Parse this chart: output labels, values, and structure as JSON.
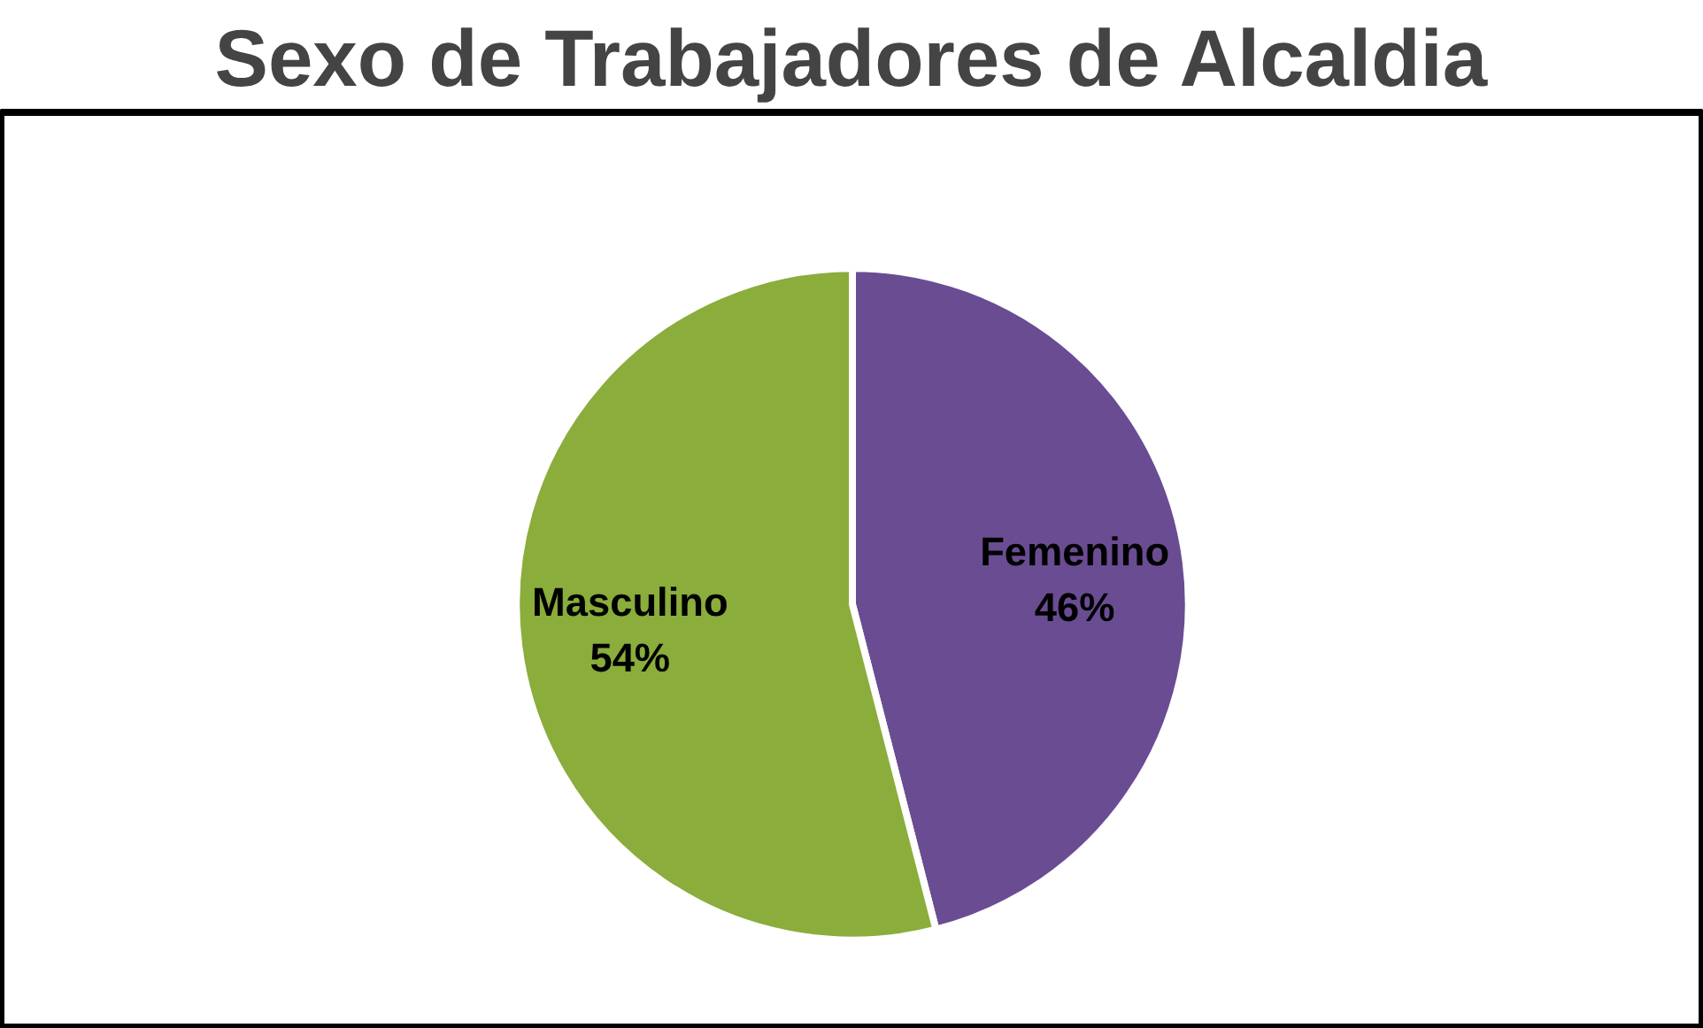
{
  "chart_data": {
    "type": "pie",
    "title": "Sexo de Trabajadores de Alcaldia",
    "categories": [
      "Femenino",
      "Masculino"
    ],
    "values": [
      46,
      54
    ],
    "colors": [
      "#6a4c93",
      "#8aad3b"
    ],
    "value_labels": [
      "46%",
      "54%"
    ]
  }
}
